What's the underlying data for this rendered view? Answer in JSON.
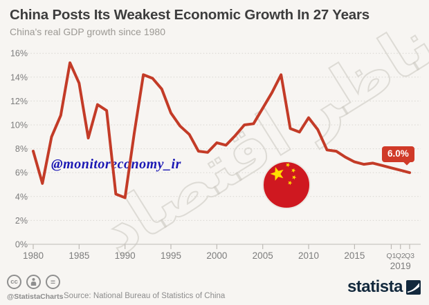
{
  "header": {
    "title": "China Posts Its Weakest Economic Growth In 27 Years",
    "subtitle": "China's real GDP growth since 1980"
  },
  "watermarks": {
    "persian_text": "ناظر اقتصاد",
    "blue_handle": "@monitoreconomy_ir",
    "blue_color": "#1b18b4"
  },
  "annotation": {
    "last_value_label": "6.0%",
    "badge_color": "#d03a28"
  },
  "chart_data": {
    "type": "line",
    "title": "China Posts Its Weakest Economic Growth In 27 Years",
    "subtitle": "China's real GDP growth since 1980",
    "series_name": "China real GDP growth",
    "unit": "%",
    "categories": [
      "1980",
      "1981",
      "1982",
      "1983",
      "1984",
      "1985",
      "1986",
      "1987",
      "1988",
      "1989",
      "1990",
      "1991",
      "1992",
      "1993",
      "1994",
      "1995",
      "1996",
      "1997",
      "1998",
      "1999",
      "2000",
      "2001",
      "2002",
      "2003",
      "2004",
      "2005",
      "2006",
      "2007",
      "2008",
      "2009",
      "2010",
      "2011",
      "2012",
      "2013",
      "2014",
      "2015",
      "2016",
      "2017",
      "2018",
      "Q1 2019",
      "Q2 2019",
      "Q3 2019"
    ],
    "values": [
      7.8,
      5.1,
      9.0,
      10.8,
      15.2,
      13.5,
      8.9,
      11.7,
      11.2,
      4.2,
      3.9,
      9.3,
      14.2,
      13.9,
      13.0,
      11.0,
      9.9,
      9.2,
      7.8,
      7.7,
      8.5,
      8.3,
      9.1,
      10.0,
      10.1,
      11.4,
      12.7,
      14.2,
      9.7,
      9.4,
      10.6,
      9.6,
      7.9,
      7.8,
      7.3,
      6.9,
      6.7,
      6.8,
      6.6,
      6.4,
      6.2,
      6.0
    ],
    "ylim": [
      0,
      16
    ],
    "y_ticks": [
      0,
      2,
      4,
      6,
      8,
      10,
      12,
      14,
      16
    ],
    "y_tick_labels": [
      "0%",
      "2%",
      "4%",
      "6%",
      "8%",
      "10%",
      "12%",
      "14%",
      "16%"
    ],
    "x_major_ticks": [
      {
        "index": 0,
        "label": "1980"
      },
      {
        "index": 5,
        "label": "1985"
      },
      {
        "index": 10,
        "label": "1990"
      },
      {
        "index": 15,
        "label": "1995"
      },
      {
        "index": 20,
        "label": "2000"
      },
      {
        "index": 25,
        "label": "2005"
      },
      {
        "index": 30,
        "label": "2010"
      },
      {
        "index": 35,
        "label": "2015"
      }
    ],
    "quarter_ticks": [
      {
        "index": 39,
        "label": "Q1"
      },
      {
        "index": 40,
        "label": "Q2"
      },
      {
        "index": 41,
        "label": "Q3"
      }
    ],
    "quarter_year_label": "2019",
    "grid": true,
    "legend": "none",
    "line_color": "#c33b27",
    "flag_icon": "china-flag-circle"
  },
  "footer": {
    "cc_label": "cc",
    "nd_label": "=",
    "handle": "@StatistaCharts",
    "source": "Source: National Bureau of Statistics of China",
    "brand": "statista"
  }
}
